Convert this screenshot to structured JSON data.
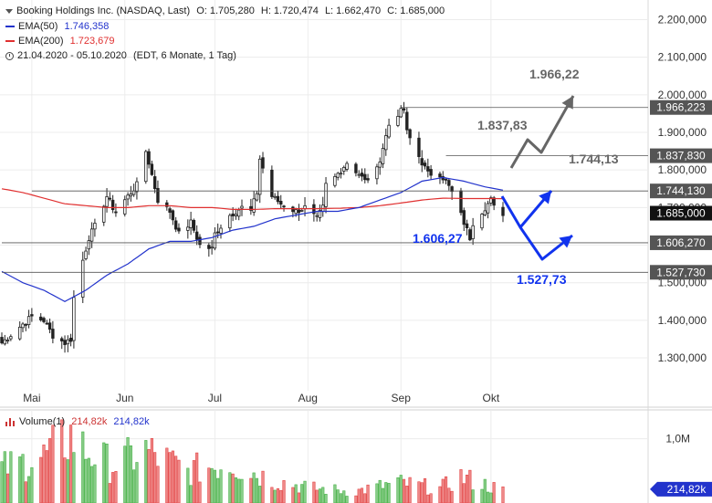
{
  "header": {
    "title": "Booking Holdings Inc. (NASDAQ, Last)",
    "ohlc": {
      "o": "O: 1.705,280",
      "h": "H: 1.720,474",
      "l": "L: 1.662,470",
      "c": "C: 1.685,000"
    },
    "ema50_label": "EMA(50)",
    "ema50_value": "1.746,358",
    "ema200_label": "EMA(200)",
    "ema200_value": "1.723,679",
    "range": "21.04.2020 - 05.10.2020",
    "range_note": "(EDT, 6 Monate, 1 Tag)"
  },
  "volume_header": {
    "label": "Volume(1)",
    "value_red": "214,82k",
    "value_blue": "214,82k"
  },
  "colors": {
    "up": "#33aa33",
    "down": "#e03030",
    "ema50": "#2233cc",
    "ema200": "#e03030",
    "badge": "#555555",
    "blue_arrow": "#1133ee",
    "gray_arrow": "#666666"
  },
  "chart_data": {
    "type": "candlestick",
    "title": "Booking Holdings Inc. (NASDAQ, Last)",
    "ylim": [
      1220000,
      2240000
    ],
    "y_ticks": [
      1300000,
      1400000,
      1500000,
      1600000,
      1700000,
      1800000,
      1900000,
      2000000,
      2100000,
      2200000
    ],
    "y_tick_labels": [
      "1.300,000",
      "1.400,000",
      "1.500,000",
      "1.600,000",
      "1.700,000",
      "1.800,000",
      "1.900,000",
      "2.000,000",
      "2.100,000",
      "2.200,000"
    ],
    "x_start": "2020-04-21",
    "x_end": "2020-10-05",
    "month_labels": [
      {
        "label": "Mai",
        "date": "2020-05-01"
      },
      {
        "label": "Jun",
        "date": "2020-06-01"
      },
      {
        "label": "Jul",
        "date": "2020-07-01"
      },
      {
        "label": "Aug",
        "date": "2020-08-01"
      },
      {
        "label": "Sep",
        "date": "2020-09-01"
      },
      {
        "label": "Okt",
        "date": "2020-10-01"
      }
    ],
    "anchor_closes": [
      [
        "2020-04-21",
        1340000
      ],
      [
        "2020-04-28",
        1390000
      ],
      [
        "2020-05-01",
        1410000
      ],
      [
        "2020-05-05",
        1400000
      ],
      [
        "2020-05-08",
        1360000
      ],
      [
        "2020-05-12",
        1340000
      ],
      [
        "2020-05-14",
        1350000
      ],
      [
        "2020-05-15",
        1460000
      ],
      [
        "2020-05-18",
        1560000
      ],
      [
        "2020-05-20",
        1620000
      ],
      [
        "2020-05-22",
        1650000
      ],
      [
        "2020-05-26",
        1730000
      ],
      [
        "2020-05-28",
        1700000
      ],
      [
        "2020-05-29",
        1690000
      ],
      [
        "2020-06-05",
        1760000
      ],
      [
        "2020-06-08",
        1850000
      ],
      [
        "2020-06-09",
        1820000
      ],
      [
        "2020-06-12",
        1720000
      ],
      [
        "2020-06-16",
        1690000
      ],
      [
        "2020-06-19",
        1630000
      ],
      [
        "2020-06-23",
        1660000
      ],
      [
        "2020-06-26",
        1600000
      ],
      [
        "2020-06-30",
        1590000
      ],
      [
        "2020-07-01",
        1630000
      ],
      [
        "2020-07-06",
        1680000
      ],
      [
        "2020-07-10",
        1700000
      ],
      [
        "2020-07-13",
        1690000
      ],
      [
        "2020-07-15",
        1740000
      ],
      [
        "2020-07-16",
        1830000
      ],
      [
        "2020-07-20",
        1730000
      ],
      [
        "2020-07-23",
        1710000
      ],
      [
        "2020-07-28",
        1690000
      ],
      [
        "2020-07-31",
        1700000
      ],
      [
        "2020-08-04",
        1670000
      ],
      [
        "2020-08-06",
        1700000
      ],
      [
        "2020-08-07",
        1760000
      ],
      [
        "2020-08-10",
        1780000
      ],
      [
        "2020-08-12",
        1800000
      ],
      [
        "2020-08-14",
        1820000
      ],
      [
        "2020-08-18",
        1790000
      ],
      [
        "2020-08-20",
        1770000
      ],
      [
        "2020-08-24",
        1800000
      ],
      [
        "2020-08-26",
        1860000
      ],
      [
        "2020-08-28",
        1920000
      ],
      [
        "2020-08-31",
        1950000
      ],
      [
        "2020-09-02",
        1960000
      ],
      [
        "2020-09-03",
        1900000
      ],
      [
        "2020-09-08",
        1820000
      ],
      [
        "2020-09-10",
        1790000
      ],
      [
        "2020-09-14",
        1790000
      ],
      [
        "2020-09-16",
        1770000
      ],
      [
        "2020-09-18",
        1740000
      ],
      [
        "2020-09-21",
        1680000
      ],
      [
        "2020-09-23",
        1640000
      ],
      [
        "2020-09-24",
        1620000
      ],
      [
        "2020-09-25",
        1660000
      ],
      [
        "2020-09-29",
        1700000
      ],
      [
        "2020-10-01",
        1720000
      ],
      [
        "2020-10-02",
        1700000
      ],
      [
        "2020-10-05",
        1685000
      ]
    ],
    "ema50": [
      [
        "2020-04-21",
        1530000
      ],
      [
        "2020-04-28",
        1500000
      ],
      [
        "2020-05-05",
        1480000
      ],
      [
        "2020-05-12",
        1450000
      ],
      [
        "2020-05-19",
        1480000
      ],
      [
        "2020-05-26",
        1520000
      ],
      [
        "2020-06-02",
        1550000
      ],
      [
        "2020-06-09",
        1590000
      ],
      [
        "2020-06-16",
        1610000
      ],
      [
        "2020-06-23",
        1610000
      ],
      [
        "2020-06-30",
        1620000
      ],
      [
        "2020-07-07",
        1640000
      ],
      [
        "2020-07-14",
        1650000
      ],
      [
        "2020-07-21",
        1670000
      ],
      [
        "2020-07-28",
        1680000
      ],
      [
        "2020-08-04",
        1690000
      ],
      [
        "2020-08-11",
        1690000
      ],
      [
        "2020-08-18",
        1700000
      ],
      [
        "2020-08-25",
        1720000
      ],
      [
        "2020-09-01",
        1740000
      ],
      [
        "2020-09-08",
        1770000
      ],
      [
        "2020-09-15",
        1780000
      ],
      [
        "2020-09-22",
        1770000
      ],
      [
        "2020-09-29",
        1755000
      ],
      [
        "2020-10-05",
        1746358
      ]
    ],
    "ema200": [
      [
        "2020-04-21",
        1750000
      ],
      [
        "2020-04-28",
        1740000
      ],
      [
        "2020-05-05",
        1725000
      ],
      [
        "2020-05-12",
        1710000
      ],
      [
        "2020-05-19",
        1705000
      ],
      [
        "2020-05-26",
        1700000
      ],
      [
        "2020-06-02",
        1700000
      ],
      [
        "2020-06-09",
        1705000
      ],
      [
        "2020-06-16",
        1705000
      ],
      [
        "2020-06-23",
        1700000
      ],
      [
        "2020-06-30",
        1700000
      ],
      [
        "2020-07-07",
        1695000
      ],
      [
        "2020-07-14",
        1695000
      ],
      [
        "2020-07-21",
        1697000
      ],
      [
        "2020-07-28",
        1697000
      ],
      [
        "2020-08-04",
        1697000
      ],
      [
        "2020-08-11",
        1698000
      ],
      [
        "2020-08-18",
        1700000
      ],
      [
        "2020-08-25",
        1705000
      ],
      [
        "2020-09-01",
        1712000
      ],
      [
        "2020-09-08",
        1720000
      ],
      [
        "2020-09-15",
        1725000
      ],
      [
        "2020-09-22",
        1724000
      ],
      [
        "2020-09-29",
        1724000
      ],
      [
        "2020-10-05",
        1723679
      ]
    ],
    "levels": [
      {
        "value": 1966223,
        "badge": "1.966,223",
        "note": "1.966,22",
        "note_color": "#666666",
        "line_from": "2020-09-01"
      },
      {
        "value": 1837830,
        "badge": "1.837,830",
        "note": "1.837,83",
        "note_color": "#666666",
        "line_from": "2020-09-16"
      },
      {
        "value": 1744130,
        "badge": "1.744,130",
        "note": "1.744,13",
        "note_color": "#666666",
        "line_from": "2020-05-01"
      },
      {
        "value": 1606270,
        "badge": "1.606,270",
        "note": "1.606,27",
        "note_color": "#1133ee",
        "line_from": "2020-04-21"
      },
      {
        "value": 1527730,
        "badge": "1.527,730",
        "note": "1.527,73",
        "note_color": "#1133ee",
        "line_from": "2020-04-21"
      }
    ],
    "last_price": {
      "value": 1685000,
      "badge": "1.685,000"
    },
    "volume": {
      "ylim": [
        0,
        1450000
      ],
      "y_ticks": [
        1000000
      ],
      "y_tick_labels": [
        "1,0M"
      ],
      "last_badge": "214,82k",
      "anchors": [
        [
          "2020-04-21",
          600000
        ],
        [
          "2020-05-05",
          800000
        ],
        [
          "2020-05-14",
          1150000
        ],
        [
          "2020-05-19",
          900000
        ],
        [
          "2020-05-28",
          650000
        ],
        [
          "2020-06-08",
          900000
        ],
        [
          "2020-06-22",
          550000
        ],
        [
          "2020-07-06",
          700000
        ],
        [
          "2020-07-20",
          400000
        ],
        [
          "2020-08-03",
          250000
        ],
        [
          "2020-08-17",
          200000
        ],
        [
          "2020-08-31",
          350000
        ],
        [
          "2020-09-14",
          250000
        ],
        [
          "2020-09-21",
          450000
        ],
        [
          "2020-10-05",
          214820
        ]
      ]
    }
  }
}
